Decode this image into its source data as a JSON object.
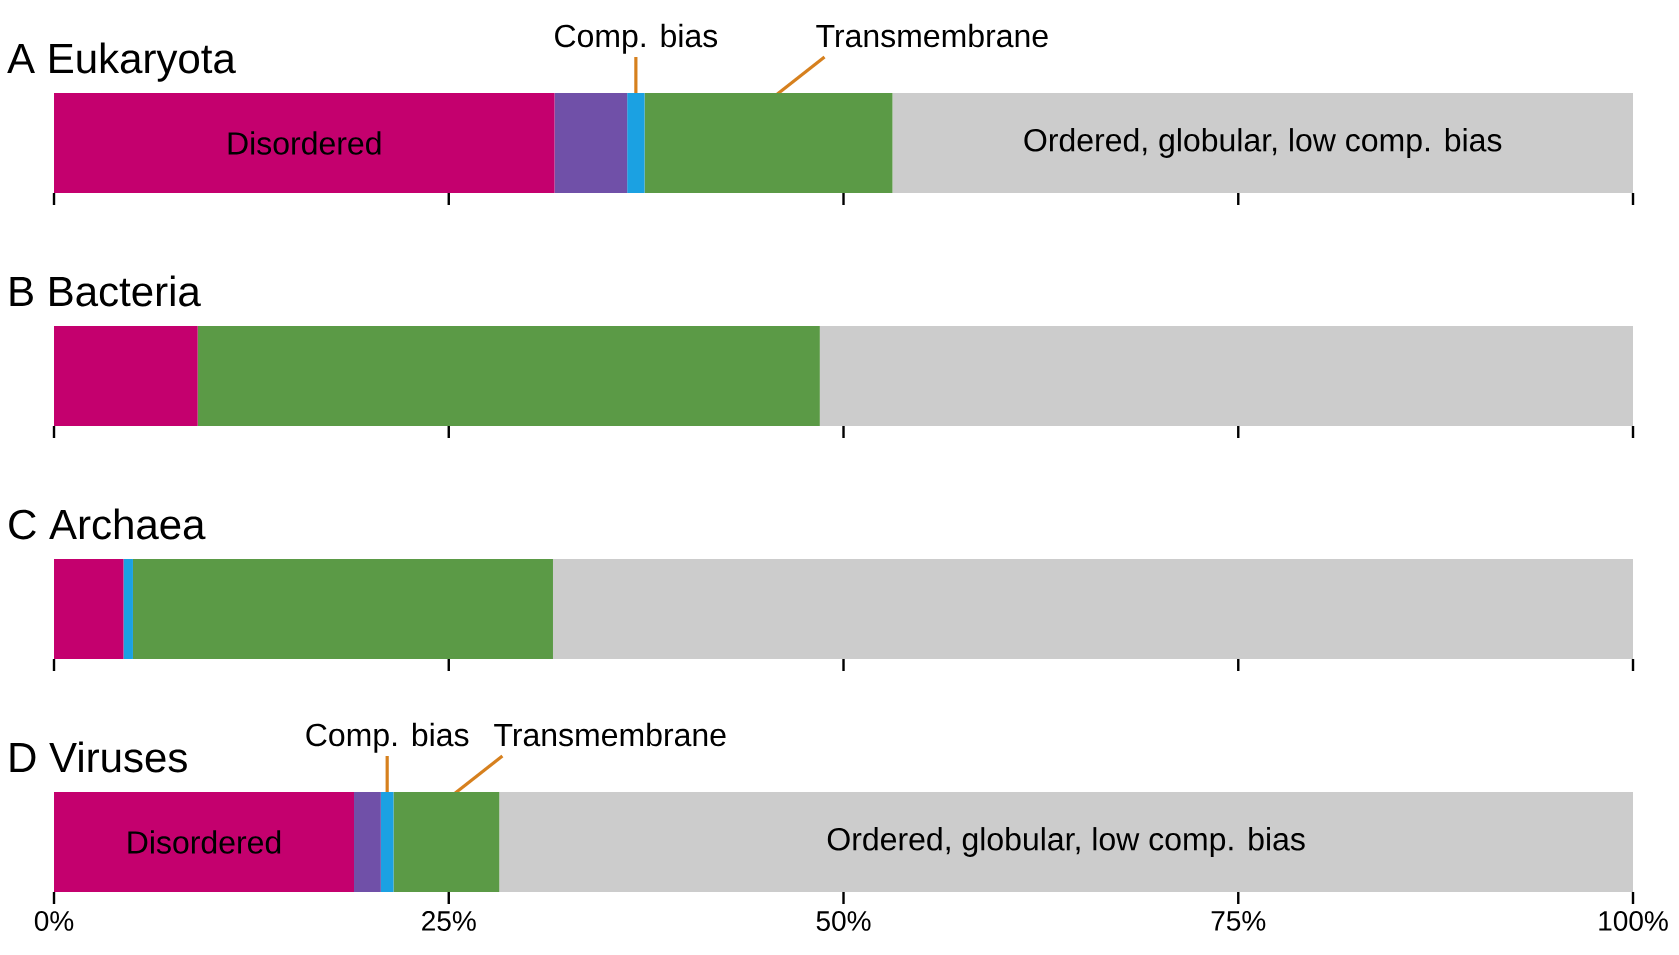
{
  "chart_data": {
    "type": "bar",
    "orientation": "horizontal",
    "stacked": true,
    "categories": [
      "A Eukaryota",
      "B Bacteria",
      "C Archaea",
      "D Viruses"
    ],
    "grid": "x",
    "xlim": [
      0,
      100
    ],
    "xticks": [
      {
        "value": 0,
        "label": "0%"
      },
      {
        "value": 25,
        "label": "25%"
      },
      {
        "value": 50,
        "label": "50%"
      },
      {
        "value": 75,
        "label": "75%"
      },
      {
        "value": 100,
        "label": "100%"
      }
    ],
    "series": [
      {
        "name": "Disordered",
        "color": "#c4006e",
        "values": [
          31.7,
          9.1,
          4.4,
          19.0
        ]
      },
      {
        "color": "#7050a8",
        "values": [
          4.6,
          null,
          null,
          1.7
        ]
      },
      {
        "name": "Comp. bias",
        "color": "#1ba1e2",
        "values": [
          1.1,
          null,
          0.6,
          0.8
        ]
      },
      {
        "name": "Transmembrane",
        "color": "#5b9a46",
        "values": [
          15.7,
          39.4,
          26.6,
          6.7
        ]
      },
      {
        "name": "Ordered, globular, low comp. bias",
        "color": "#cccccc",
        "values": [
          46.9,
          51.5,
          68.4,
          71.8
        ]
      }
    ]
  }
}
